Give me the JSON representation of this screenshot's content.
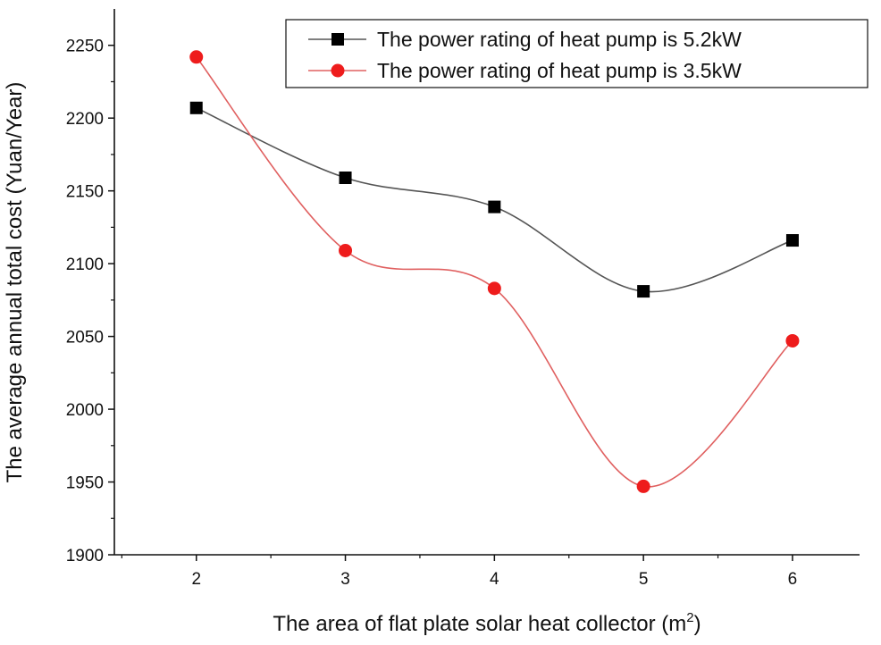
{
  "chart_data": {
    "type": "line",
    "title": "",
    "xlabel": "The area of flat plate solar heat collector (m",
    "xlabel_sup": "2",
    "xlabel_end": ")",
    "ylabel": "The average annual total cost (Yuan/Year)",
    "x": [
      2,
      3,
      4,
      5,
      6
    ],
    "xlim": [
      1.45,
      6.45
    ],
    "ylim": [
      1900,
      2275
    ],
    "xticks": [
      2,
      3,
      4,
      5,
      6
    ],
    "yticks": [
      1900,
      1950,
      2000,
      2050,
      2100,
      2150,
      2200,
      2250
    ],
    "grid": false,
    "legend_position": "top-right",
    "series": [
      {
        "name": "The power rating of heat pump is 5.2kW",
        "values": [
          2207,
          2159,
          2139,
          2081,
          2116
        ],
        "color": "#555555",
        "marker": "square",
        "marker_color": "#000000"
      },
      {
        "name": "The power rating of heat pump is 3.5kW",
        "values": [
          2242,
          2109,
          2083,
          1947,
          2047
        ],
        "color": "#e06060",
        "marker": "circle",
        "marker_color": "#ee1c1c"
      }
    ]
  }
}
